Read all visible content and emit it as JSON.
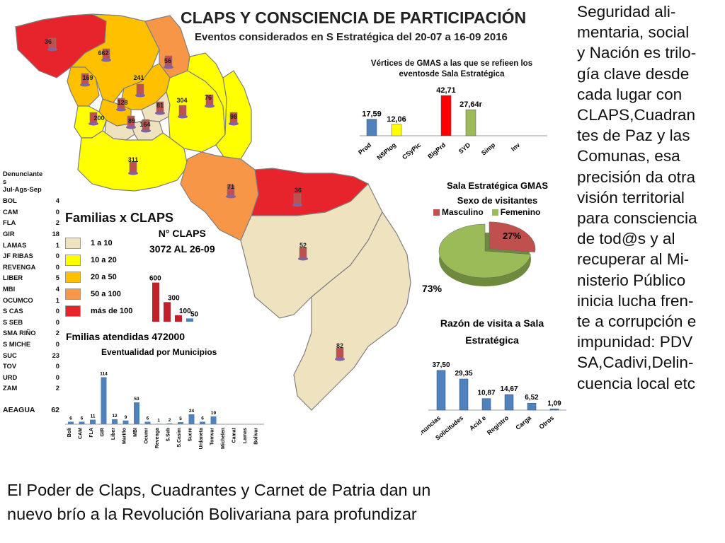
{
  "title": "CLAPS Y CONSCIENCIA DE PARTICIPACIÓN",
  "subtitle": "Eventos considerados en S Estratégica del 20-07 a 16-09 2016",
  "side_text": [
    "Seguridad ali-",
    "mentaria, social",
    "y Nación es trilo-",
    "gía clave desde",
    "cada lugar con",
    "CLAPS,Cuadran",
    "tes de Paz y las",
    "Comunas, esa",
    "precisión da otra",
    "visión territorial",
    "para consciencia",
    "de tod@s y al",
    "recuperar al Mi-",
    "nisterio Público",
    "inicia lucha fren-",
    "te a corrupción e",
    "impunidad: PDV",
    "SA,Cadivi,Delin-",
    "cuencia local etc"
  ],
  "bottom_text": [
    "El Poder de Claps, Cuadrantes y Carnet de Patria dan un",
    "nuevo brío a la Revolución Bolivariana para profundizar"
  ],
  "map_values": {
    "r1": "36",
    "r2": "662",
    "r3": "56",
    "r4": "169",
    "r5": "241",
    "r6": "128",
    "r7": "81",
    "r8": "304",
    "r9": "76",
    "r10": "200",
    "r11": "89",
    "r12": "164",
    "r13": "98",
    "r14": "311",
    "r15": "71",
    "r16": "36",
    "r17": "52",
    "r18": "82"
  },
  "colors": {
    "c1": "#efe3bf",
    "c2": "#ffff00",
    "c3": "#ffc000",
    "c4": "#f79646",
    "c5": "#e7242c",
    "bar_blue": "#4f81bd",
    "bar_red": "#c0212b"
  },
  "denuncias": {
    "header": [
      "Denunciante",
      "s",
      "Jul-Ags-Sep"
    ],
    "rows": [
      [
        "BOL",
        "4"
      ],
      [
        "CAM",
        "0"
      ],
      [
        "FLA",
        "2"
      ],
      [
        "GIR",
        "18"
      ],
      [
        "LAMAS",
        "1"
      ],
      [
        "JF RIBAS",
        "0"
      ],
      [
        "REVENGA",
        "0"
      ],
      [
        "LIBER",
        "5"
      ],
      [
        "MBI",
        "4"
      ],
      [
        "OCUMCO",
        "1"
      ],
      [
        "S CAS",
        "0"
      ],
      [
        "S SEB",
        "0"
      ],
      [
        "SMA RIÑO",
        "2"
      ],
      [
        "S MICHE",
        "0"
      ],
      [
        "SUC",
        "23"
      ],
      [
        "TOV",
        "0"
      ],
      [
        "URD",
        "0"
      ],
      [
        "ZAM",
        "2"
      ]
    ],
    "total_label": "AEAGUA",
    "total_value": "62"
  },
  "legend": {
    "title": "Familias x CLAPS",
    "items": [
      [
        "1 a 10",
        "c1"
      ],
      [
        "10 a 20",
        "c2"
      ],
      [
        "20 a 50",
        "c3"
      ],
      [
        "50 a 100",
        "c4"
      ],
      [
        "más de 100",
        "c5"
      ]
    ]
  },
  "nclaps": {
    "line1": "N° CLAPS",
    "line2": "3072 AL 26-09"
  },
  "familias_atendidas": "Fmilias atendidas 472000",
  "eventualidad_title": "Eventualidad por Municipios",
  "chart_data": [
    {
      "type": "bar",
      "title": "Vértices de GMAS a las que se refieen los eventosde Sala Estratégica",
      "categories": [
        "Prod",
        "NSPlog",
        "CSyPic",
        "BigPrd",
        "SYD",
        "Simp",
        "Inv"
      ],
      "values": [
        17.59,
        12.06,
        0,
        42.71,
        27.64,
        0,
        0
      ],
      "labels": [
        "17,59",
        "12,06",
        "",
        "42,71",
        "27,64r",
        "",
        ""
      ],
      "bar_colors": [
        "#4f81bd",
        "#ffff00",
        "#ffffff",
        "#ff0000",
        "#9bbb59",
        "#ffffff",
        "#ffffff"
      ],
      "ylim": [
        0,
        45
      ]
    },
    {
      "type": "pie",
      "title": "Sala Estratégica GMAS",
      "subtitle": "Sexo de visitantes",
      "slices": [
        {
          "name": "Masculino",
          "value": 27,
          "label": "27%",
          "color": "#c0504d"
        },
        {
          "name": "Femenino",
          "value": 73,
          "label": "73%",
          "color": "#9bbb59"
        }
      ]
    },
    {
      "type": "bar",
      "title": "Razón de visita a Sala Estratégica",
      "categories": [
        "Denuncias",
        "Solicitudes",
        "Acid e",
        "Registro",
        "Carga",
        "Otros"
      ],
      "values": [
        37.5,
        29.35,
        10.87,
        14.67,
        6.52,
        1.09
      ],
      "labels": [
        "37,50",
        "29,35",
        "10,87",
        "14,67",
        "6,52",
        "1,09"
      ],
      "ylim": [
        0,
        40
      ]
    },
    {
      "type": "bar",
      "title": "N° CLAPS",
      "categories": [
        "",
        "",
        "",
        ""
      ],
      "values": [
        600,
        300,
        100,
        50
      ],
      "labels": [
        "600",
        "300",
        "100",
        "50"
      ],
      "ylim": [
        0,
        650
      ]
    },
    {
      "type": "bar",
      "title": "Eventualidad por Municipios",
      "categories": [
        "Boli",
        "CAM",
        "FLA",
        "GIR",
        "Liber",
        "Mariño",
        "MBI",
        "Ocumr",
        "Revenga",
        "S.Seb",
        "S.Casim",
        "Sucre",
        "Urdaneta",
        "Tomvar",
        "Michelen",
        "Camat",
        "Lamas",
        "Bolivar"
      ],
      "values": [
        6,
        6,
        11,
        114,
        12,
        9,
        53,
        6,
        1,
        2,
        5,
        24,
        6,
        19,
        0,
        0,
        0,
        0
      ],
      "labels": [
        "6",
        "6",
        "11",
        "114",
        "12",
        "9",
        "53",
        "6",
        "1",
        "2",
        "5",
        "24",
        "6",
        "19",
        "",
        "",
        "",
        ""
      ],
      "ylim": [
        0,
        120
      ]
    }
  ]
}
